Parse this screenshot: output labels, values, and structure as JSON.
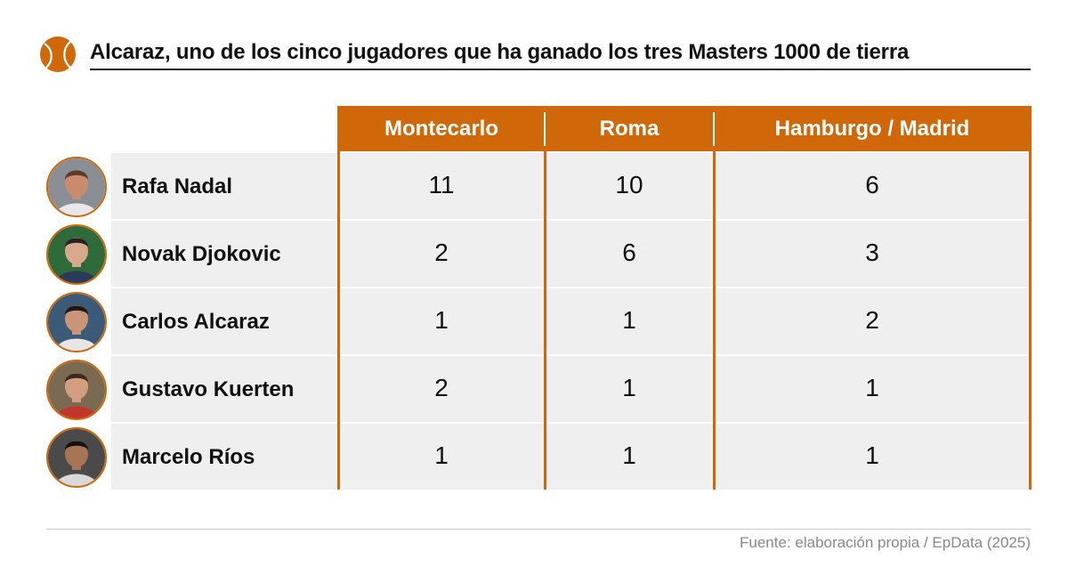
{
  "title": "Alcaraz, uno de los cinco jugadores que ha ganado los tres Masters 1000 de tierra",
  "source": "Fuente: elaboración propia / EpData (2025)",
  "colors": {
    "accent": "#d0680a",
    "row_bg": "#efeff0",
    "header_text": "#ffffff",
    "text": "#111111",
    "source_text": "#888888"
  },
  "chart_data": {
    "type": "table",
    "columns": [
      "Montecarlo",
      "Roma",
      "Hamburgo / Madrid"
    ],
    "rows": [
      {
        "player": "Rafa Nadal",
        "values": [
          "11",
          "10",
          "6"
        ]
      },
      {
        "player": "Novak Djokovic",
        "values": [
          "2",
          "6",
          "3"
        ]
      },
      {
        "player": "Carlos Alcaraz",
        "values": [
          "1",
          "1",
          "2"
        ]
      },
      {
        "player": "Gustavo Kuerten",
        "values": [
          "2",
          "1",
          "1"
        ]
      },
      {
        "player": "Marcelo Ríos",
        "values": [
          "1",
          "1",
          "1"
        ]
      }
    ]
  }
}
